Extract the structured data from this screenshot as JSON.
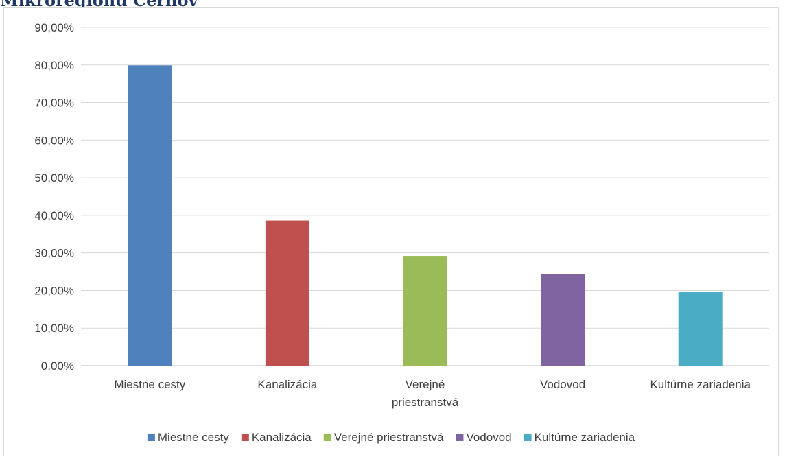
{
  "page_title": "Mikroregiónu Cerhov",
  "chart_data": {
    "type": "bar",
    "title": "",
    "xlabel": "",
    "ylabel": "",
    "categories": [
      "Miestne cesty",
      "Kanalizácia",
      "Verejné priestranstvá",
      "Vodovod",
      "Kultúrne zariadenia"
    ],
    "category_labels": [
      [
        "Miestne cesty"
      ],
      [
        "Kanalizácia"
      ],
      [
        "Verejné",
        "priestranstvá"
      ],
      [
        "Vodovod"
      ],
      [
        "Kultúrne zariadenia"
      ]
    ],
    "values": [
      79.9,
      38.6,
      29.2,
      24.4,
      19.6
    ],
    "colors": [
      "#4f81bd",
      "#c0504d",
      "#9bbb59",
      "#8064a2",
      "#4bacc6"
    ],
    "ylim": [
      0,
      90
    ],
    "y_ticks": [
      "0,00%",
      "10,00%",
      "20,00%",
      "30,00%",
      "40,00%",
      "50,00%",
      "60,00%",
      "70,00%",
      "80,00%",
      "90,00%"
    ],
    "grid": true,
    "legend_position": "bottom",
    "legend": [
      "Miestne cesty",
      "Kanalizácia",
      "Verejné priestranstvá",
      "Vodovod",
      "Kultúrne zariadenia"
    ]
  }
}
